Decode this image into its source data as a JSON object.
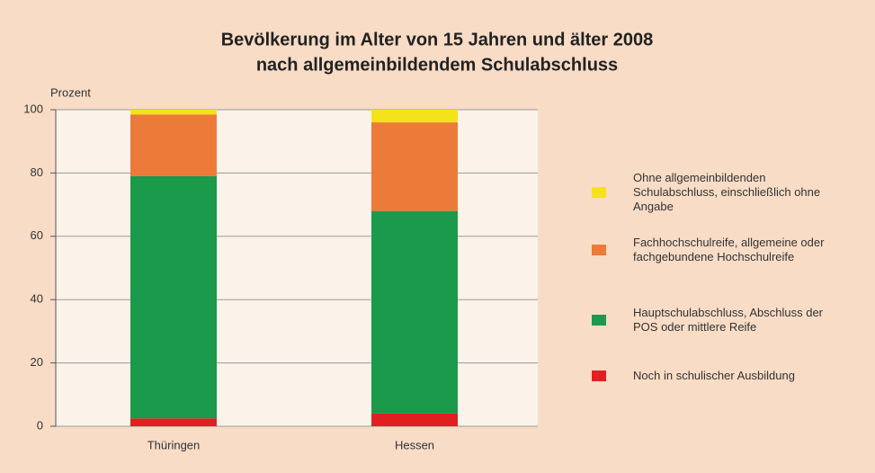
{
  "chart_data": {
    "type": "stacked_bar",
    "title": "Bevölkerung im Alter von 15 Jahren und älter 2008",
    "subtitle": "nach allgemeinbildendem Schulabschluss",
    "y_label": "Prozent",
    "categories": [
      "Thüringen",
      "Hessen"
    ],
    "series": [
      {
        "name": "Noch in schulischer Ausbildung",
        "color": "#e02020",
        "values": [
          2.5,
          4
        ]
      },
      {
        "name": "Hauptschulabschluss, Abschluss der POS oder mittlere Reife",
        "color": "#1a9a4a",
        "values": [
          76.5,
          64
        ]
      },
      {
        "name": "Fachhochschulreife, allgemeine oder fachgebundene Hochschulreife",
        "color": "#ec7a38",
        "values": [
          19.5,
          28
        ]
      },
      {
        "name": "Ohne allgemeinbildenden Schulabschluss, einschließlich ohne Angabe",
        "color": "#f5e21a",
        "values": [
          1.5,
          4
        ]
      }
    ],
    "ylim": [
      0,
      100
    ],
    "yticks": [
      0,
      20,
      40,
      60,
      80,
      100
    ],
    "grid": true
  }
}
